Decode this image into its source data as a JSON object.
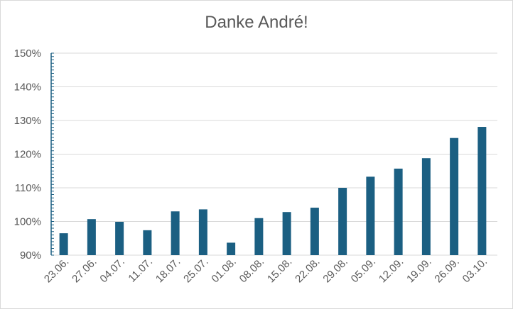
{
  "chart_data": {
    "type": "bar",
    "title": "Danke André!",
    "xlabel": "",
    "ylabel": "",
    "categories": [
      "23.06.",
      "27.06.",
      "04.07.",
      "11.07.",
      "18.07.",
      "25.07.",
      "01.08.",
      "08.08.",
      "15.08.",
      "22.08.",
      "29.08.",
      "05.09.",
      "12.09.",
      "19.09.",
      "26.09.",
      "03.10."
    ],
    "values": [
      96.5,
      100.7,
      99.9,
      97.4,
      103.0,
      103.6,
      93.7,
      101.0,
      102.8,
      104.1,
      110.0,
      113.3,
      115.7,
      118.8,
      124.8,
      128.1
    ],
    "ylim": [
      90,
      150
    ],
    "yticks": [
      "90%",
      "100%",
      "110%",
      "120%",
      "130%",
      "140%",
      "150%"
    ],
    "grid": true,
    "legend": "none",
    "bar_color": "#1b5f82",
    "grid_color": "#d9d9d9",
    "axis_color": "#1b5f82",
    "text_color": "#595959"
  }
}
